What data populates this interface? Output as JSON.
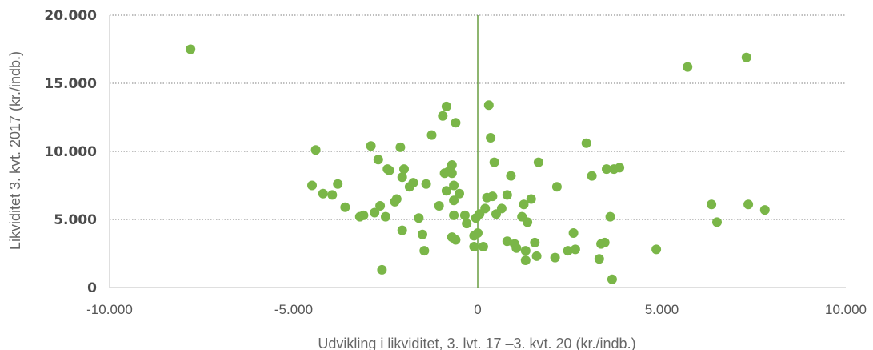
{
  "chart_data": {
    "type": "scatter",
    "xlabel": "Udvikling i likviditet, 3. lvt. 17 –3. kvt. 20 (kr./indb.)",
    "ylabel": "Likviditet 3. kvt. 2017 (kr./indb.)",
    "xlim": [
      -10000,
      10000
    ],
    "ylim": [
      0,
      20000
    ],
    "x_ticks": [
      -10000,
      -5000,
      0,
      5000,
      10000
    ],
    "x_tick_labels": [
      "-10.000",
      "-5.000",
      "0",
      "5.000",
      "10.000"
    ],
    "y_ticks": [
      0,
      5000,
      10000,
      15000,
      20000
    ],
    "y_tick_labels": [
      "0",
      "5.000",
      "10.000",
      "15.000",
      "20.000"
    ],
    "grid": "horizontal dotted",
    "colors": {
      "points": "#7ab648",
      "zero_line": "#5e9634",
      "grid": "#7f7f7f",
      "axis": "#bfbfbf"
    },
    "series": [
      {
        "points": [
          [
            -7800,
            17500
          ],
          [
            5700,
            16200
          ],
          [
            7300,
            16900
          ],
          [
            -4400,
            10100
          ],
          [
            -2900,
            10400
          ],
          [
            -2100,
            10300
          ],
          [
            -1250,
            11200
          ],
          [
            -950,
            12600
          ],
          [
            -850,
            13300
          ],
          [
            300,
            13400
          ],
          [
            350,
            11000
          ],
          [
            -600,
            12100
          ],
          [
            2950,
            10600
          ],
          [
            -4500,
            7500
          ],
          [
            -4200,
            6900
          ],
          [
            -3950,
            6800
          ],
          [
            -3800,
            7600
          ],
          [
            -3600,
            5900
          ],
          [
            -3200,
            5200
          ],
          [
            -3100,
            5300
          ],
          [
            -2800,
            5500
          ],
          [
            -2700,
            9400
          ],
          [
            -2650,
            6000
          ],
          [
            -2600,
            1300
          ],
          [
            -2500,
            5200
          ],
          [
            -2450,
            8700
          ],
          [
            -2400,
            8600
          ],
          [
            -2250,
            6300
          ],
          [
            -2200,
            6500
          ],
          [
            -2050,
            4200
          ],
          [
            -2050,
            8100
          ],
          [
            -2000,
            8700
          ],
          [
            -1850,
            7400
          ],
          [
            -1750,
            7700
          ],
          [
            -1600,
            5100
          ],
          [
            -1500,
            3900
          ],
          [
            -1450,
            2700
          ],
          [
            -1400,
            7600
          ],
          [
            -1050,
            6000
          ],
          [
            -900,
            8400
          ],
          [
            -850,
            7100
          ],
          [
            -800,
            8500
          ],
          [
            -700,
            9000
          ],
          [
            -700,
            8400
          ],
          [
            -650,
            6400
          ],
          [
            -650,
            7500
          ],
          [
            -650,
            5300
          ],
          [
            -500,
            6900
          ],
          [
            -700,
            3700
          ],
          [
            -600,
            3500
          ],
          [
            -350,
            5300
          ],
          [
            -300,
            4700
          ],
          [
            -100,
            3800
          ],
          [
            -100,
            3000
          ],
          [
            0,
            4000
          ],
          [
            -50,
            5100
          ],
          [
            50,
            5400
          ],
          [
            150,
            3000
          ],
          [
            200,
            5800
          ],
          [
            250,
            6600
          ],
          [
            400,
            6700
          ],
          [
            450,
            9200
          ],
          [
            500,
            5400
          ],
          [
            650,
            5800
          ],
          [
            800,
            6800
          ],
          [
            900,
            8200
          ],
          [
            800,
            3400
          ],
          [
            1000,
            3200
          ],
          [
            1050,
            2900
          ],
          [
            1200,
            5200
          ],
          [
            1250,
            6100
          ],
          [
            1300,
            2000
          ],
          [
            1300,
            2700
          ],
          [
            1350,
            4800
          ],
          [
            1450,
            6500
          ],
          [
            1550,
            3300
          ],
          [
            1600,
            2300
          ],
          [
            1650,
            9200
          ],
          [
            2100,
            2200
          ],
          [
            2150,
            7400
          ],
          [
            2450,
            2700
          ],
          [
            2600,
            4000
          ],
          [
            2650,
            2800
          ],
          [
            3100,
            8200
          ],
          [
            3300,
            2100
          ],
          [
            3350,
            3200
          ],
          [
            3450,
            3300
          ],
          [
            3500,
            8700
          ],
          [
            3600,
            5200
          ],
          [
            3650,
            600
          ],
          [
            3700,
            8700
          ],
          [
            3850,
            8800
          ],
          [
            4850,
            2800
          ],
          [
            6350,
            6100
          ],
          [
            6500,
            4800
          ],
          [
            7350,
            6100
          ],
          [
            7800,
            5700
          ]
        ]
      }
    ]
  }
}
